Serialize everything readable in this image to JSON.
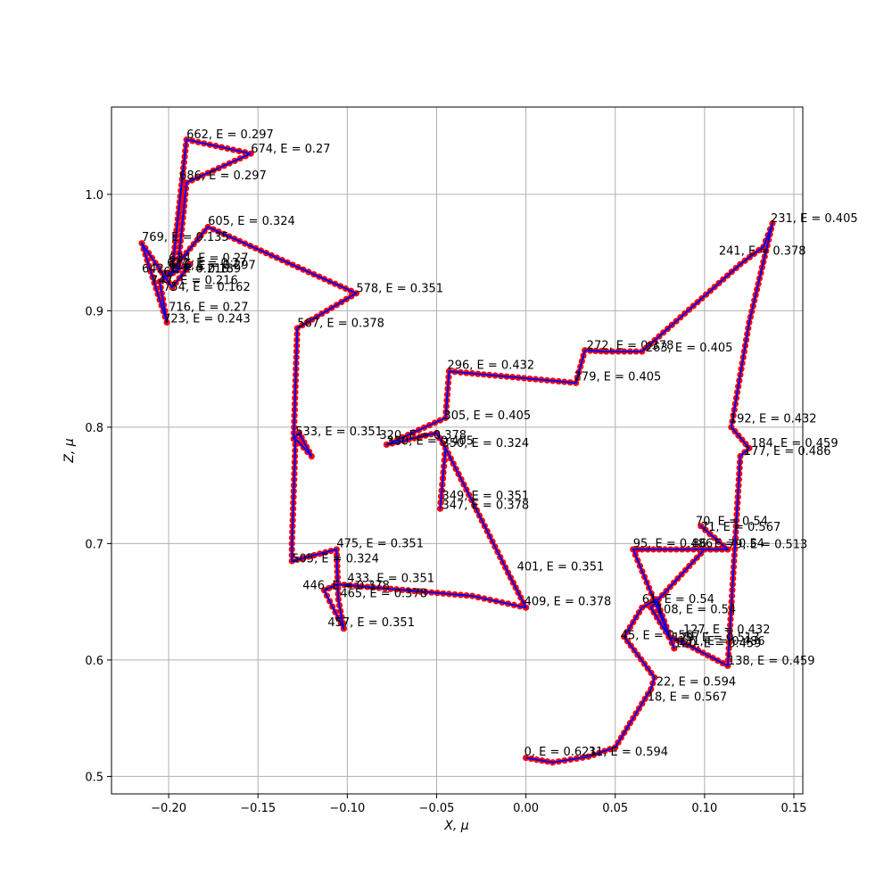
{
  "chart_data": {
    "type": "line",
    "title": "",
    "xlabel": "X, μ",
    "ylabel": "Z, μ",
    "xlim": [
      -0.232,
      0.155
    ],
    "ylim": [
      0.485,
      1.075
    ],
    "grid": true,
    "xticks": [
      -0.2,
      -0.15,
      -0.1,
      -0.05,
      0.0,
      0.05,
      0.1,
      0.15
    ],
    "xtick_labels": [
      "−0.20",
      "−0.15",
      "−0.10",
      "−0.05",
      "0.00",
      "0.05",
      "0.10",
      "0.15"
    ],
    "yticks": [
      0.5,
      0.6,
      0.7,
      0.8,
      0.9,
      1.0
    ],
    "ytick_labels": [
      "0.5",
      "0.6",
      "0.7",
      "0.8",
      "0.9",
      "1.0"
    ],
    "colors": {
      "line": "#0000ff",
      "markers": "#ff0000",
      "grid": "#b0b0b0"
    },
    "series": [
      {
        "x": [
          0.0,
          0.015,
          0.035,
          0.05,
          0.07,
          0.072,
          0.055,
          0.065,
          0.073,
          0.083,
          0.06,
          0.065,
          0.113,
          0.098,
          0.113,
          0.1,
          0.07,
          0.08,
          0.088,
          0.113,
          0.12,
          0.125,
          0.115,
          0.125,
          0.138,
          0.133,
          0.12,
          0.065,
          0.045,
          0.033,
          0.028,
          -0.043,
          -0.045,
          -0.078,
          -0.05,
          -0.045,
          -0.048,
          -0.045,
          -0.01,
          0.0,
          -0.03,
          -0.105,
          -0.113,
          -0.102,
          -0.105,
          -0.106,
          -0.131,
          -0.131,
          -0.129,
          -0.12,
          -0.127,
          -0.13,
          -0.128,
          -0.095,
          -0.178,
          -0.198,
          -0.19,
          -0.154,
          -0.19,
          -0.195,
          -0.205,
          -0.201,
          -0.215,
          -0.198,
          -0.188,
          -0.195,
          -0.201
        ],
        "y": [
          0.516,
          0.512,
          0.517,
          0.525,
          0.575,
          0.585,
          0.62,
          0.645,
          0.652,
          0.61,
          0.695,
          0.695,
          0.695,
          0.715,
          0.695,
          0.695,
          0.645,
          0.62,
          0.615,
          0.595,
          0.775,
          0.782,
          0.8,
          0.89,
          0.975,
          0.955,
          0.94,
          0.865,
          0.865,
          0.866,
          0.838,
          0.848,
          0.808,
          0.785,
          0.795,
          0.782,
          0.73,
          0.782,
          0.675,
          0.645,
          0.655,
          0.665,
          0.66,
          0.627,
          0.652,
          0.695,
          0.685,
          0.7,
          0.79,
          0.775,
          0.795,
          0.79,
          0.885,
          0.915,
          0.972,
          0.935,
          1.047,
          1.035,
          1.01,
          0.935,
          0.925,
          0.89,
          0.958,
          0.92,
          0.94,
          0.935,
          0.932
        ]
      }
    ],
    "annotations": [
      {
        "text": "0, E = 0.621",
        "x": -0.001,
        "y": 0.518
      },
      {
        "text": "31, E = 0.594",
        "x": 0.035,
        "y": 0.518
      },
      {
        "text": "18, E = 0.567",
        "x": 0.068,
        "y": 0.565
      },
      {
        "text": "22, E = 0.594",
        "x": 0.073,
        "y": 0.578
      },
      {
        "text": "45, E = 0.567",
        "x": 0.053,
        "y": 0.618
      },
      {
        "text": "127, E = 0.432",
        "x": 0.088,
        "y": 0.623
      },
      {
        "text": "129, E = 0.513",
        "x": 0.082,
        "y": 0.616
      },
      {
        "text": "131, E = 0.486",
        "x": 0.085,
        "y": 0.613
      },
      {
        "text": "120, E = 0.459",
        "x": 0.083,
        "y": 0.611
      },
      {
        "text": "138, E = 0.459",
        "x": 0.113,
        "y": 0.596
      },
      {
        "text": "108, E = 0.54",
        "x": 0.073,
        "y": 0.64
      },
      {
        "text": "61, E = 0.54",
        "x": 0.065,
        "y": 0.649
      },
      {
        "text": "95, E = 0.486",
        "x": 0.06,
        "y": 0.697
      },
      {
        "text": "86, E = 0.54",
        "x": 0.093,
        "y": 0.697
      },
      {
        "text": "79, E = 0.513",
        "x": 0.113,
        "y": 0.696
      },
      {
        "text": "70, E = 0.54",
        "x": 0.095,
        "y": 0.716
      },
      {
        "text": "71, E = 0.567",
        "x": 0.098,
        "y": 0.711
      },
      {
        "text": "177, E = 0.486",
        "x": 0.122,
        "y": 0.776
      },
      {
        "text": "184, E = 0.459",
        "x": 0.126,
        "y": 0.783
      },
      {
        "text": "192, E = 0.432",
        "x": 0.114,
        "y": 0.804
      },
      {
        "text": "241, E = 0.378",
        "x": 0.108,
        "y": 0.948
      },
      {
        "text": "231, E = 0.405",
        "x": 0.137,
        "y": 0.976
      },
      {
        "text": "263, E = 0.405",
        "x": 0.067,
        "y": 0.865
      },
      {
        "text": "272, E = 0.378",
        "x": 0.034,
        "y": 0.867
      },
      {
        "text": "279, E = 0.405",
        "x": 0.027,
        "y": 0.84
      },
      {
        "text": "296, E = 0.432",
        "x": -0.044,
        "y": 0.85
      },
      {
        "text": "305, E = 0.405",
        "x": -0.046,
        "y": 0.807
      },
      {
        "text": "320, E = 0.378",
        "x": -0.082,
        "y": 0.79
      },
      {
        "text": "330, E = 0.405",
        "x": -0.078,
        "y": 0.785
      },
      {
        "text": "350, E = 0.324",
        "x": -0.047,
        "y": 0.783
      },
      {
        "text": "349, E = 0.351",
        "x": -0.047,
        "y": 0.738
      },
      {
        "text": "347, E = 0.378",
        "x": -0.047,
        "y": 0.73
      },
      {
        "text": "401, E = 0.351",
        "x": -0.005,
        "y": 0.677
      },
      {
        "text": "409, E = 0.378",
        "x": -0.001,
        "y": 0.647
      },
      {
        "text": "433, E = 0.351",
        "x": -0.1,
        "y": 0.667
      },
      {
        "text": "446, E = 0.378",
        "x": -0.125,
        "y": 0.661
      },
      {
        "text": "465, E = 0.378",
        "x": -0.104,
        "y": 0.654
      },
      {
        "text": "457, E = 0.351",
        "x": -0.111,
        "y": 0.629
      },
      {
        "text": "475, E = 0.351",
        "x": -0.106,
        "y": 0.697
      },
      {
        "text": "505, E = 0.324",
        "x": -0.131,
        "y": 0.684
      },
      {
        "text": "533, E = 0.351",
        "x": -0.129,
        "y": 0.793
      },
      {
        "text": "567, E = 0.378",
        "x": -0.128,
        "y": 0.886
      },
      {
        "text": "578, E = 0.351",
        "x": -0.095,
        "y": 0.916
      },
      {
        "text": "605, E = 0.324",
        "x": -0.178,
        "y": 0.974
      },
      {
        "text": "662, E = 0.297",
        "x": -0.19,
        "y": 1.048
      },
      {
        "text": "674, E = 0.27",
        "x": -0.154,
        "y": 1.036
      },
      {
        "text": "686, E = 0.297",
        "x": -0.194,
        "y": 1.013
      },
      {
        "text": "769, E = 0.135",
        "x": -0.215,
        "y": 0.96
      },
      {
        "text": "624, E = 0.27",
        "x": -0.201,
        "y": 0.938
      },
      {
        "text": "634, E = 0.27",
        "x": -0.2,
        "y": 0.942
      },
      {
        "text": "616, E = 0.297",
        "x": -0.2,
        "y": 0.936
      },
      {
        "text": "7, E = 0.189",
        "x": -0.2,
        "y": 0.933
      },
      {
        "text": "642, E = 0.216",
        "x": -0.215,
        "y": 0.933
      },
      {
        "text": "6:",
        "x": -0.203,
        "y": 0.93
      },
      {
        "text": "747, E = 0.216",
        "x": -0.21,
        "y": 0.923
      },
      {
        "text": "754, E = 0.162",
        "x": -0.203,
        "y": 0.917
      },
      {
        "text": "716, E = 0.27",
        "x": -0.2,
        "y": 0.9
      },
      {
        "text": "723, E = 0.243",
        "x": -0.203,
        "y": 0.89
      }
    ]
  }
}
